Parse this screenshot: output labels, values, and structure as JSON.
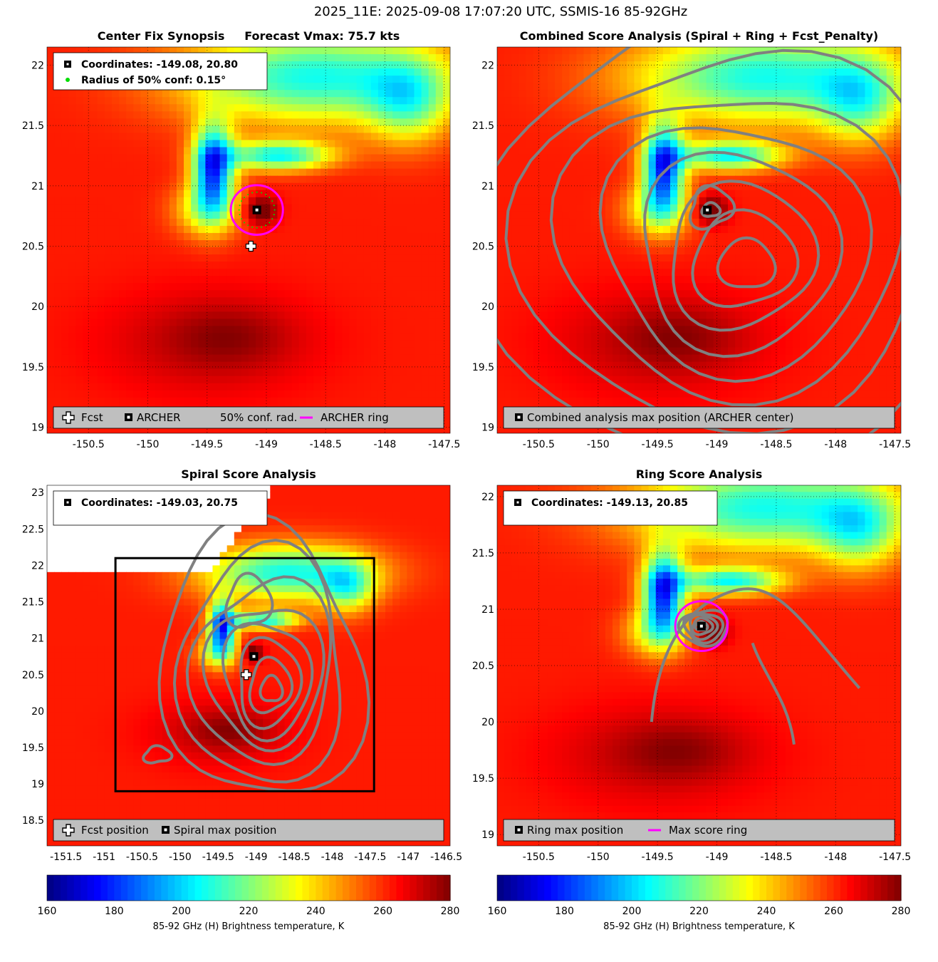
{
  "figure_title": "2025_11E: 2025-09-08 17:07:20 UTC, SSMIS-16 85-92GHz",
  "colors": {
    "fcst_marker": "#ffffff",
    "archer_ring": "#ff00ff",
    "conf_dot": "#00dd00",
    "contour": "#808080",
    "legend_bg": "#bfbfbf",
    "box": "#000000"
  },
  "chart_data": [
    {
      "id": "p1",
      "type": "heatmap",
      "title": "Center Fix Synopsis     Forecast Vmax: 75.7 kts",
      "xlim": [
        -150.85,
        -147.45
      ],
      "ylim": [
        18.95,
        22.15
      ],
      "xticks": [
        -150.5,
        -150,
        -149.5,
        -149,
        -148.5,
        -148,
        -147.5
      ],
      "xtick_labels": [
        "-150.5",
        "-150",
        "-149.5",
        "-149",
        "-148.5",
        "-148",
        "-147.5"
      ],
      "yticks": [
        19,
        19.5,
        20,
        20.5,
        21,
        21.5,
        22
      ],
      "ytick_labels": [
        "19",
        "19.5",
        "20",
        "20.5",
        "21",
        "21.5",
        "22"
      ],
      "grid": "dotted",
      "info_lines": [
        {
          "marker": "square",
          "text": "Coordinates: -149.08, 20.80"
        },
        {
          "marker": "green-dot",
          "text": "Radius of 50% conf: 0.15°"
        }
      ],
      "legend": [
        {
          "marker": "fcst-cross",
          "label": "Fcst"
        },
        {
          "marker": "square",
          "label": "ARCHER"
        },
        {
          "marker": "none",
          "label": "50% conf. rad."
        },
        {
          "marker": "magenta-line",
          "label": "ARCHER ring"
        }
      ],
      "legend_location": "bottom",
      "center": [
        -149.08,
        20.8
      ],
      "fcst": [
        -149.13,
        20.5
      ],
      "ring_radius_deg": 0.22
    },
    {
      "id": "p2",
      "type": "heatmap",
      "title": "Combined Score Analysis (Spiral + Ring + Fcst_Penalty)",
      "xlim": [
        -150.85,
        -147.45
      ],
      "ylim": [
        18.95,
        22.15
      ],
      "xticks": [
        -150.5,
        -150,
        -149.5,
        -149,
        -148.5,
        -148,
        -147.5
      ],
      "xtick_labels": [
        "-150.5",
        "-150",
        "-149.5",
        "-149",
        "-148.5",
        "-148",
        "-147.5"
      ],
      "yticks": [
        19,
        19.5,
        20,
        20.5,
        21,
        21.5,
        22
      ],
      "ytick_labels": [
        "19",
        "19.5",
        "20",
        "20.5",
        "21",
        "21.5",
        "22"
      ],
      "grid": "dotted",
      "legend": [
        {
          "marker": "square",
          "label": "Combined analysis max position (ARCHER center)"
        }
      ],
      "legend_location": "bottom",
      "center": [
        -149.08,
        20.8
      ]
    },
    {
      "id": "p3",
      "type": "heatmap",
      "title": "Spiral Score Analysis",
      "xlim": [
        -151.75,
        -146.45
      ],
      "ylim": [
        18.15,
        23.1
      ],
      "xticks": [
        -151.5,
        -151,
        -150.5,
        -150,
        -149.5,
        -149,
        -148.5,
        -148,
        -147.5,
        -147,
        -146.5
      ],
      "xtick_labels": [
        "-151.5",
        "-151",
        "-150.5",
        "-150",
        "-149.5",
        "-149",
        "-148.5",
        "-148",
        "-147.5",
        "-147",
        "-146.5"
      ],
      "yticks": [
        18.5,
        19,
        19.5,
        20,
        20.5,
        21,
        21.5,
        22,
        22.5,
        23
      ],
      "ytick_labels": [
        "18.5",
        "19",
        "19.5",
        "20",
        "20.5",
        "21",
        "21.5",
        "22",
        "22.5",
        "23"
      ],
      "grid": "none",
      "info_lines": [
        {
          "marker": "square",
          "text": "Coordinates: -149.03, 20.75"
        }
      ],
      "legend": [
        {
          "marker": "fcst-cross",
          "label": "Fcst position"
        },
        {
          "marker": "square",
          "label": "Spiral max position"
        }
      ],
      "legend_location": "bottom",
      "center": [
        -149.03,
        20.75
      ],
      "fcst": [
        -149.13,
        20.5
      ],
      "box": {
        "x": [
          -150.85,
          -147.45
        ],
        "y": [
          18.9,
          22.1
        ]
      }
    },
    {
      "id": "p4",
      "type": "heatmap",
      "title": "Ring Score Analysis",
      "xlim": [
        -150.85,
        -147.45
      ],
      "ylim": [
        18.9,
        22.1
      ],
      "xticks": [
        -150.5,
        -150,
        -149.5,
        -149,
        -148.5,
        -148,
        -147.5
      ],
      "xtick_labels": [
        "-150.5",
        "-150",
        "-149.5",
        "-149",
        "-148.5",
        "-148",
        "-147.5"
      ],
      "yticks": [
        19,
        19.5,
        20,
        20.5,
        21,
        21.5,
        22
      ],
      "ytick_labels": [
        "19",
        "19.5",
        "20",
        "20.5",
        "21",
        "21.5",
        "22"
      ],
      "grid": "dotted",
      "info_lines": [
        {
          "marker": "square",
          "text": "Coordinates: -149.13, 20.85"
        }
      ],
      "legend": [
        {
          "marker": "square",
          "label": "Ring max position"
        },
        {
          "marker": "magenta-line",
          "label": "Max score ring"
        }
      ],
      "legend_location": "bottom",
      "center": [
        -149.13,
        20.85
      ],
      "ring_radius_deg": 0.22
    }
  ],
  "colorbars": [
    {
      "range": [
        160,
        280
      ],
      "ticks": [
        160,
        180,
        200,
        220,
        240,
        260,
        280
      ],
      "tick_labels": [
        "160",
        "180",
        "200",
        "220",
        "240",
        "260",
        "280"
      ],
      "label": "85-92 GHz (H) Brightness temperature, K",
      "colormap": "jet-reversed"
    },
    {
      "range": [
        160,
        280
      ],
      "ticks": [
        160,
        180,
        200,
        220,
        240,
        260,
        280
      ],
      "tick_labels": [
        "160",
        "180",
        "200",
        "220",
        "240",
        "260",
        "280"
      ],
      "label": "85-92 GHz (H) Brightness temperature, K",
      "colormap": "jet-reversed"
    }
  ]
}
